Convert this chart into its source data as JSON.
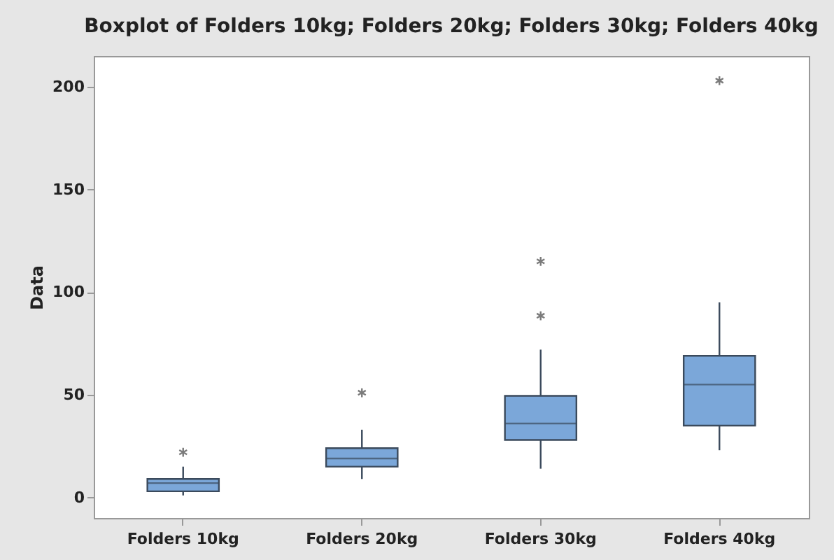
{
  "chart_data": {
    "type": "box",
    "title": "Boxplot of Folders 10kg; Folders 20kg; Folders 30kg; Folders 40kg",
    "ylabel": "Data",
    "categories": [
      "Folders 10kg",
      "Folders 20kg",
      "Folders 30kg",
      "Folders 40kg"
    ],
    "color": "#7ba7d9",
    "marker": "star",
    "boxes": [
      {
        "low": 1,
        "q1": 3,
        "median": 7,
        "q3": 9,
        "high": 15,
        "outliers": [
          22
        ]
      },
      {
        "low": 9,
        "q1": 15,
        "median": 19,
        "q3": 24,
        "high": 33,
        "outliers": [
          51
        ]
      },
      {
        "low": 14,
        "q1": 28,
        "median": 36,
        "q3": 49.5,
        "high": 72,
        "outliers": [
          88.5,
          115
        ]
      },
      {
        "low": 23,
        "q1": 35,
        "median": 55,
        "q3": 69,
        "high": 95,
        "outliers": [
          203
        ]
      }
    ],
    "ylim": [
      -10,
      215
    ],
    "yticks": [
      0,
      50,
      100,
      150,
      200
    ],
    "grid": false
  }
}
